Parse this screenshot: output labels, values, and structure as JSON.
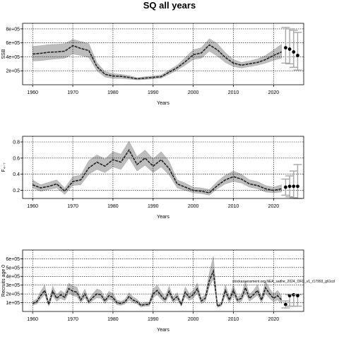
{
  "figure": {
    "title": "SQ all years"
  },
  "chart_data": [
    {
      "type": "area",
      "xlabel": "Years",
      "ylabel": "SSB",
      "xlim": [
        1957.5,
        2027.5
      ],
      "ylim": [
        0,
        880000
      ],
      "xticks": [
        1960,
        1970,
        1980,
        1990,
        2000,
        2010,
        2020
      ],
      "xtick_labels": [
        "1960",
        "1970",
        "1980",
        "1990",
        "2000",
        "2010",
        "2020"
      ],
      "yticks": [
        200000,
        400000,
        600000,
        800000
      ],
      "ytick_labels": [
        "2e+05",
        "4e+05",
        "6e+05",
        "8e+05"
      ],
      "grid": true,
      "annotation": "",
      "x": [
        1960,
        1962,
        1964,
        1966,
        1968,
        1970,
        1972,
        1974,
        1976,
        1978,
        1980,
        1982,
        1984,
        1986,
        1988,
        1990,
        1992,
        1994,
        1996,
        1998,
        2000,
        2002,
        2004,
        2006,
        2008,
        2010,
        2012,
        2014,
        2016,
        2018,
        2020,
        2022
      ],
      "median": [
        440000,
        450000,
        465000,
        470000,
        480000,
        560000,
        520000,
        490000,
        260000,
        150000,
        125000,
        120000,
        105000,
        85000,
        95000,
        105000,
        115000,
        180000,
        245000,
        330000,
        430000,
        455000,
        570000,
        500000,
        390000,
        310000,
        280000,
        300000,
        320000,
        360000,
        420000,
        470000
      ],
      "lower": [
        340000,
        345000,
        360000,
        370000,
        380000,
        440000,
        420000,
        390000,
        200000,
        110000,
        90000,
        90000,
        80000,
        70000,
        75000,
        85000,
        95000,
        150000,
        210000,
        280000,
        360000,
        380000,
        480000,
        410000,
        320000,
        260000,
        240000,
        260000,
        280000,
        310000,
        350000,
        380000
      ],
      "upper": [
        550000,
        560000,
        575000,
        580000,
        590000,
        650000,
        620000,
        590000,
        320000,
        190000,
        160000,
        150000,
        130000,
        100000,
        115000,
        125000,
        140000,
        210000,
        280000,
        390000,
        500000,
        530000,
        660000,
        590000,
        460000,
        360000,
        320000,
        340000,
        370000,
        420000,
        500000,
        580000
      ],
      "forecast": {
        "x": [
          2023,
          2024,
          2025,
          2026
        ],
        "median": [
          530000,
          510000,
          470000,
          420000
        ],
        "lower": [
          310000,
          300000,
          250000,
          210000
        ],
        "upper": [
          820000,
          800000,
          780000,
          750000
        ]
      }
    },
    {
      "type": "area",
      "xlabel": "Years",
      "ylabel": "F₄₋₇",
      "xlim": [
        1957.5,
        2027.5
      ],
      "ylim": [
        0.1,
        0.87
      ],
      "xticks": [
        1960,
        1970,
        1980,
        1990,
        2000,
        2010,
        2020
      ],
      "xtick_labels": [
        "1960",
        "1970",
        "1980",
        "1990",
        "2000",
        "2010",
        "2020"
      ],
      "yticks": [
        0.2,
        0.4,
        0.6,
        0.8
      ],
      "ytick_labels": [
        "0.2",
        "0.4",
        "0.6",
        "0.8"
      ],
      "grid": true,
      "annotation": "",
      "x": [
        1960,
        1962,
        1964,
        1966,
        1968,
        1970,
        1972,
        1974,
        1976,
        1978,
        1980,
        1982,
        1984,
        1986,
        1988,
        1990,
        1992,
        1994,
        1996,
        1998,
        2000,
        2002,
        2004,
        2006,
        2008,
        2010,
        2012,
        2014,
        2016,
        2018,
        2020,
        2022
      ],
      "median": [
        0.27,
        0.23,
        0.25,
        0.28,
        0.19,
        0.31,
        0.33,
        0.48,
        0.55,
        0.5,
        0.58,
        0.55,
        0.7,
        0.52,
        0.6,
        0.5,
        0.58,
        0.47,
        0.28,
        0.24,
        0.2,
        0.19,
        0.17,
        0.26,
        0.33,
        0.37,
        0.34,
        0.28,
        0.26,
        0.22,
        0.2,
        0.22
      ],
      "lower": [
        0.23,
        0.19,
        0.21,
        0.23,
        0.15,
        0.26,
        0.27,
        0.4,
        0.46,
        0.42,
        0.49,
        0.46,
        0.6,
        0.44,
        0.51,
        0.42,
        0.49,
        0.39,
        0.23,
        0.2,
        0.17,
        0.16,
        0.14,
        0.22,
        0.28,
        0.31,
        0.29,
        0.24,
        0.22,
        0.18,
        0.17,
        0.18
      ],
      "upper": [
        0.33,
        0.27,
        0.3,
        0.33,
        0.23,
        0.37,
        0.39,
        0.57,
        0.64,
        0.59,
        0.68,
        0.65,
        0.81,
        0.62,
        0.7,
        0.59,
        0.68,
        0.56,
        0.33,
        0.29,
        0.24,
        0.23,
        0.21,
        0.31,
        0.39,
        0.44,
        0.4,
        0.33,
        0.31,
        0.26,
        0.24,
        0.27
      ],
      "forecast": {
        "x": [
          2023,
          2024,
          2025,
          2026
        ],
        "median": [
          0.24,
          0.25,
          0.25,
          0.25
        ],
        "lower": [
          0.14,
          0.12,
          0.11,
          0.1
        ],
        "upper": [
          0.34,
          0.38,
          0.44,
          0.52
        ]
      }
    },
    {
      "type": "area",
      "xlabel": "Years",
      "ylabel": "Recruits age 0",
      "xlim": [
        1957.5,
        2027.5
      ],
      "ylim": [
        0,
        700000
      ],
      "xticks": [
        1960,
        1970,
        1980,
        1990,
        2000,
        2010,
        2020
      ],
      "xtick_labels": [
        "1960",
        "1970",
        "1980",
        "1990",
        "2000",
        "2010",
        "2020"
      ],
      "yticks": [
        100000,
        200000,
        300000,
        400000,
        500000,
        600000
      ],
      "ytick_labels": [
        "1e+05",
        "2e+05",
        "3e+05",
        "4e+05",
        "5e+05",
        "6e+05"
      ],
      "grid": true,
      "annotation": "stockassessment.org NEA_saithe_2024_OFD_v1_r17993_g61cd",
      "x": [
        1960,
        1961,
        1962,
        1963,
        1964,
        1965,
        1966,
        1967,
        1968,
        1969,
        1970,
        1971,
        1972,
        1973,
        1974,
        1975,
        1976,
        1977,
        1978,
        1979,
        1980,
        1981,
        1982,
        1983,
        1984,
        1985,
        1986,
        1987,
        1988,
        1989,
        1990,
        1991,
        1992,
        1993,
        1994,
        1995,
        1996,
        1997,
        1998,
        1999,
        2000,
        2001,
        2002,
        2003,
        2004,
        2005,
        2006,
        2007,
        2008,
        2009,
        2010,
        2011,
        2012,
        2013,
        2014,
        2015,
        2016,
        2017,
        2018,
        2019,
        2020,
        2021,
        2022
      ],
      "median": [
        90000,
        110000,
        180000,
        240000,
        80000,
        230000,
        150000,
        190000,
        160000,
        260000,
        230000,
        220000,
        130000,
        200000,
        110000,
        160000,
        200000,
        190000,
        120000,
        180000,
        160000,
        100000,
        90000,
        110000,
        170000,
        130000,
        110000,
        70000,
        80000,
        80000,
        200000,
        240000,
        180000,
        130000,
        230000,
        130000,
        170000,
        80000,
        220000,
        160000,
        190000,
        260000,
        120000,
        150000,
        350000,
        460000,
        60000,
        80000,
        240000,
        130000,
        240000,
        130000,
        150000,
        270000,
        150000,
        190000,
        240000,
        130000,
        270000,
        200000,
        150000,
        180000,
        130000
      ],
      "lower": [
        70000,
        85000,
        140000,
        190000,
        60000,
        180000,
        115000,
        150000,
        125000,
        210000,
        180000,
        170000,
        100000,
        155000,
        85000,
        125000,
        155000,
        150000,
        90000,
        140000,
        125000,
        75000,
        70000,
        85000,
        130000,
        100000,
        85000,
        50000,
        60000,
        60000,
        155000,
        190000,
        140000,
        100000,
        180000,
        100000,
        130000,
        60000,
        170000,
        125000,
        150000,
        205000,
        90000,
        115000,
        280000,
        370000,
        45000,
        60000,
        185000,
        100000,
        185000,
        100000,
        115000,
        210000,
        115000,
        150000,
        185000,
        100000,
        205000,
        150000,
        110000,
        130000,
        90000
      ],
      "upper": [
        115000,
        140000,
        230000,
        300000,
        105000,
        290000,
        190000,
        240000,
        205000,
        325000,
        290000,
        280000,
        165000,
        255000,
        140000,
        205000,
        255000,
        240000,
        155000,
        230000,
        205000,
        130000,
        115000,
        140000,
        215000,
        165000,
        140000,
        90000,
        105000,
        105000,
        255000,
        300000,
        230000,
        165000,
        290000,
        165000,
        215000,
        105000,
        280000,
        205000,
        240000,
        325000,
        155000,
        195000,
        440000,
        630000,
        80000,
        105000,
        305000,
        165000,
        305000,
        165000,
        195000,
        345000,
        195000,
        240000,
        305000,
        165000,
        345000,
        260000,
        200000,
        240000,
        180000
      ],
      "forecast": {
        "x": [
          2023,
          2024,
          2025,
          2026
        ],
        "median": [
          80000,
          180000,
          190000,
          180000
        ],
        "lower": [
          40000,
          60000,
          60000,
          60000
        ],
        "upper": [
          120000,
          190000,
          195000,
          190000
        ]
      }
    }
  ]
}
